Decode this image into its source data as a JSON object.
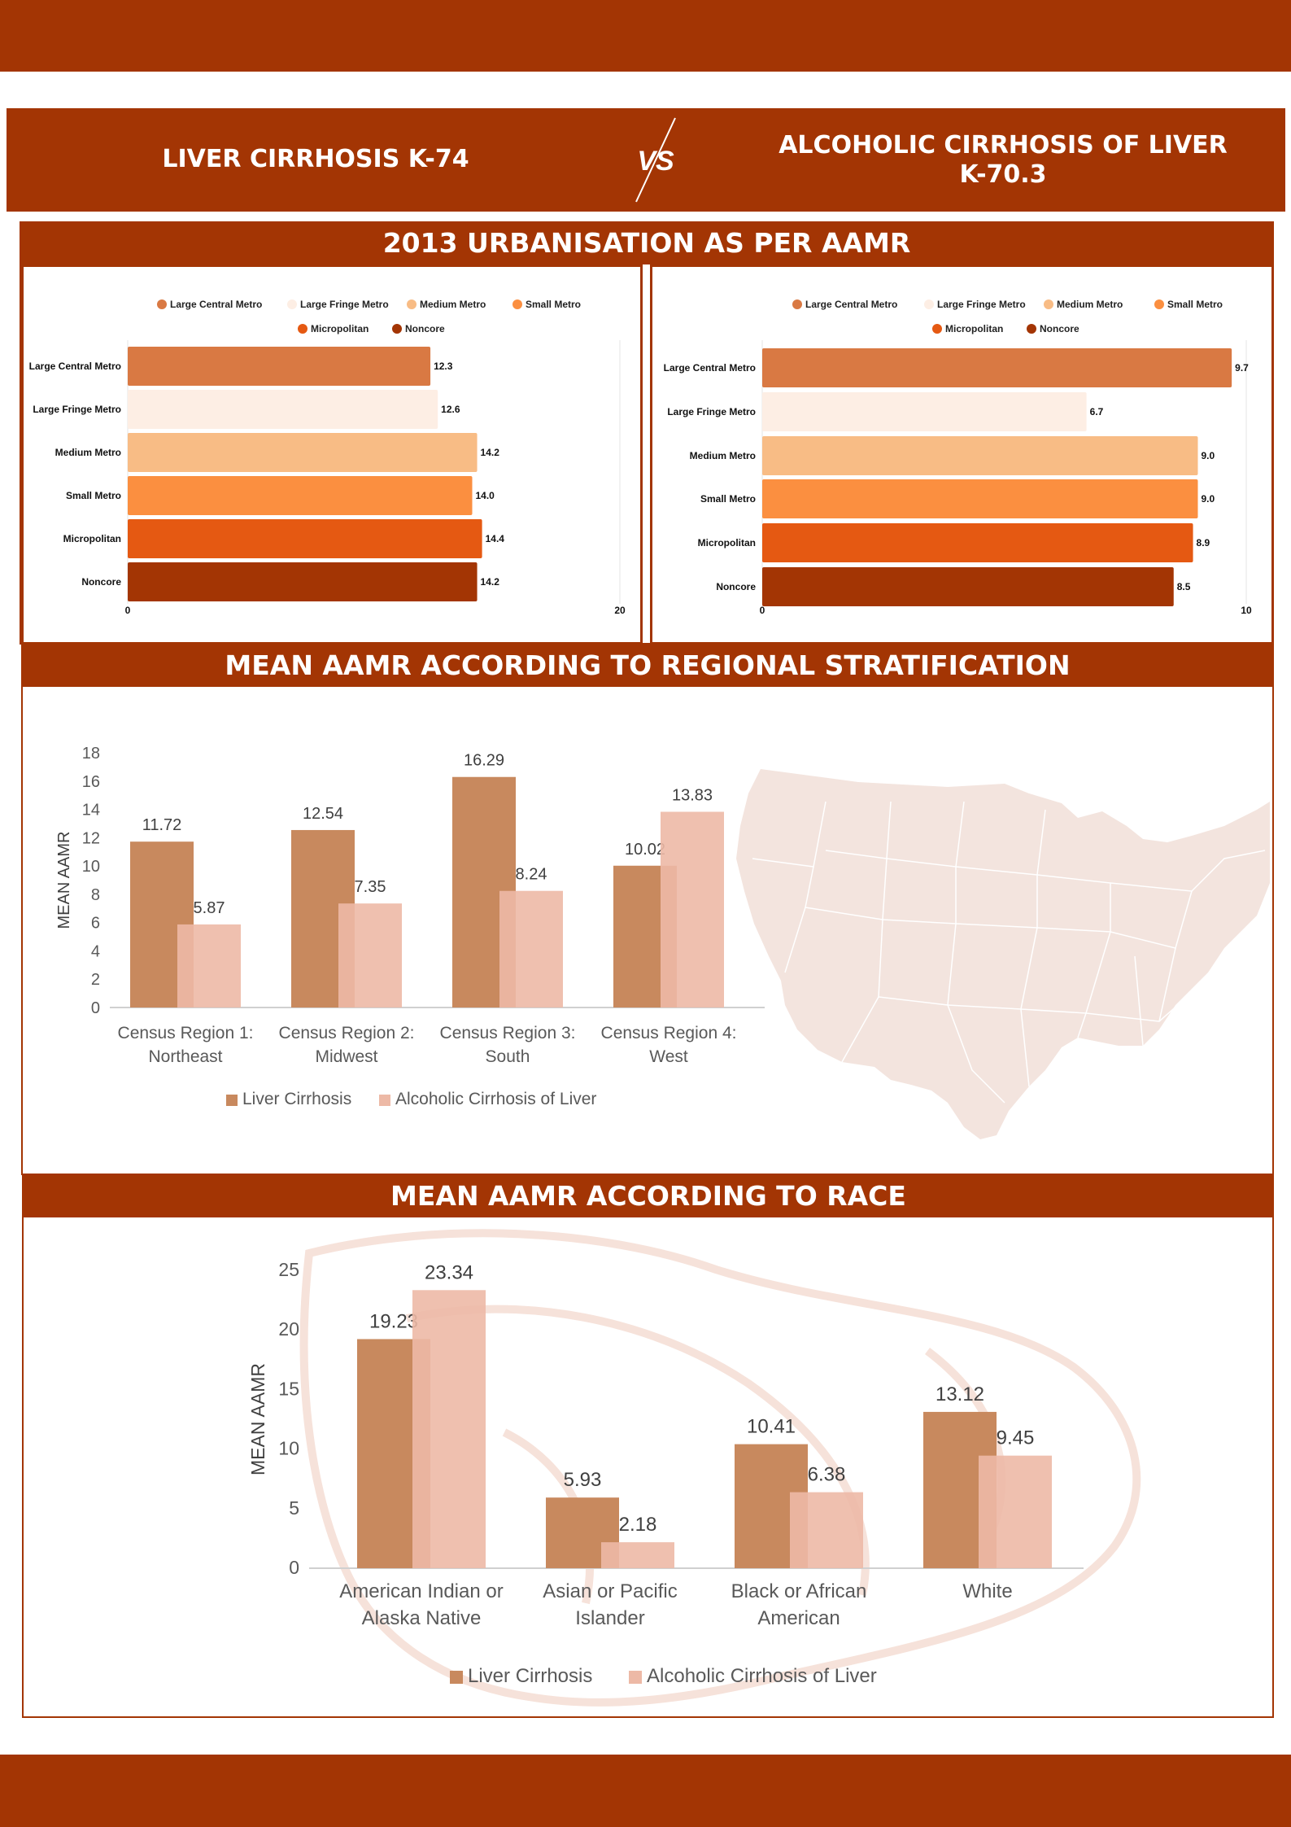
{
  "header": {
    "left_title": "LIVER CIRRHOSIS K-74",
    "vs": "VS",
    "right_title_line1": "ALCOHOLIC CIRRHOSIS OF LIVER",
    "right_title_line2": "K-70.3"
  },
  "sections": {
    "urbanisation": "2013 URBANISATION AS PER AAMR",
    "regional": "MEAN AAMR ACCORDING TO REGIONAL STRATIFICATION",
    "race": "MEAN AAMR ACCORDING TO RACE"
  },
  "colors": {
    "brand": "#a33504",
    "liver": "#c8895e",
    "alcoholic": "#edb9a6",
    "map": "#f3e4de"
  },
  "chart_data": [
    {
      "type": "bar",
      "orientation": "horizontal",
      "categories": [
        "Large Central Metro",
        "Large Fringe Metro",
        "Medium Metro",
        "Small Metro",
        "Micropolitan",
        "Noncore"
      ],
      "values": [
        12.3,
        12.6,
        14.2,
        14.0,
        14.4,
        14.2
      ],
      "labels": [
        "12.3",
        "12.6",
        "14.2",
        "14.0",
        "14.4",
        "14.2"
      ],
      "colors": [
        "#d97943",
        "#fdeee4",
        "#f8bc85",
        "#fb8f40",
        "#e55912",
        "#a33504"
      ],
      "legend": [
        "Large Central Metro",
        "Large Fringe Metro",
        "Medium Metro",
        "Small Metro",
        "Micropolitan",
        "Noncore"
      ],
      "legend_position": "top",
      "xlim": [
        0,
        20
      ],
      "xticks": [
        "0",
        "20"
      ]
    },
    {
      "type": "bar",
      "orientation": "horizontal",
      "categories": [
        "Large Central Metro",
        "Large Fringe Metro",
        "Medium Metro",
        "Small Metro",
        "Micropolitan",
        "Noncore"
      ],
      "values": [
        9.7,
        6.7,
        9.0,
        9.0,
        8.9,
        8.5
      ],
      "labels": [
        "9.7",
        "6.7",
        "9.0",
        "9.0",
        "8.9",
        "8.5"
      ],
      "colors": [
        "#d97943",
        "#fdeee4",
        "#f8bc85",
        "#fb8f40",
        "#e55912",
        "#a33504"
      ],
      "legend": [
        "Large Central Metro",
        "Large Fringe Metro",
        "Medium Metro",
        "Small Metro",
        "Micropolitan",
        "Noncore"
      ],
      "legend_position": "top",
      "xlim": [
        0,
        10
      ],
      "xticks": [
        "0",
        "10"
      ]
    },
    {
      "type": "bar",
      "categories": [
        [
          "Census Region 1:",
          "Northeast"
        ],
        [
          "Census Region 2:",
          "Midwest"
        ],
        [
          "Census Region 3:",
          "South"
        ],
        [
          "Census Region 4:",
          "West"
        ]
      ],
      "series": [
        {
          "name": "Liver Cirrhosis",
          "values": [
            11.72,
            12.54,
            16.29,
            10.02
          ],
          "labels": [
            "11.72",
            "12.54",
            "16.29",
            "10.02"
          ]
        },
        {
          "name": "Alcoholic Cirrhosis of Liver",
          "values": [
            5.87,
            7.35,
            8.24,
            13.83
          ],
          "labels": [
            "5.87",
            "7.35",
            "8.24",
            "13.83"
          ]
        }
      ],
      "ylabel": "MEAN AAMR",
      "ylim": [
        0,
        18
      ],
      "yticks": [
        "0",
        "2",
        "4",
        "6",
        "8",
        "10",
        "12",
        "14",
        "16",
        "18"
      ],
      "legend_position": "bottom"
    },
    {
      "type": "bar",
      "categories": [
        [
          "American  Indian or",
          "Alaska Native"
        ],
        [
          "Asian or Pacific",
          "Islander"
        ],
        [
          "Black or African",
          "American"
        ],
        [
          "White"
        ]
      ],
      "series": [
        {
          "name": "Liver Cirrhosis",
          "values": [
            19.23,
            5.93,
            10.41,
            13.12
          ],
          "labels": [
            "19.23",
            "5.93",
            "10.41",
            "13.12"
          ]
        },
        {
          "name": "Alcoholic Cirrhosis of Liver",
          "values": [
            23.34,
            2.18,
            6.38,
            9.45
          ],
          "labels": [
            "23.34",
            "2.18",
            "6.38",
            "9.45"
          ]
        }
      ],
      "ylabel": "MEAN AAMR",
      "ylim": [
        0,
        25
      ],
      "yticks": [
        "0",
        "5",
        "10",
        "15",
        "20",
        "25"
      ],
      "legend_position": "bottom"
    }
  ]
}
